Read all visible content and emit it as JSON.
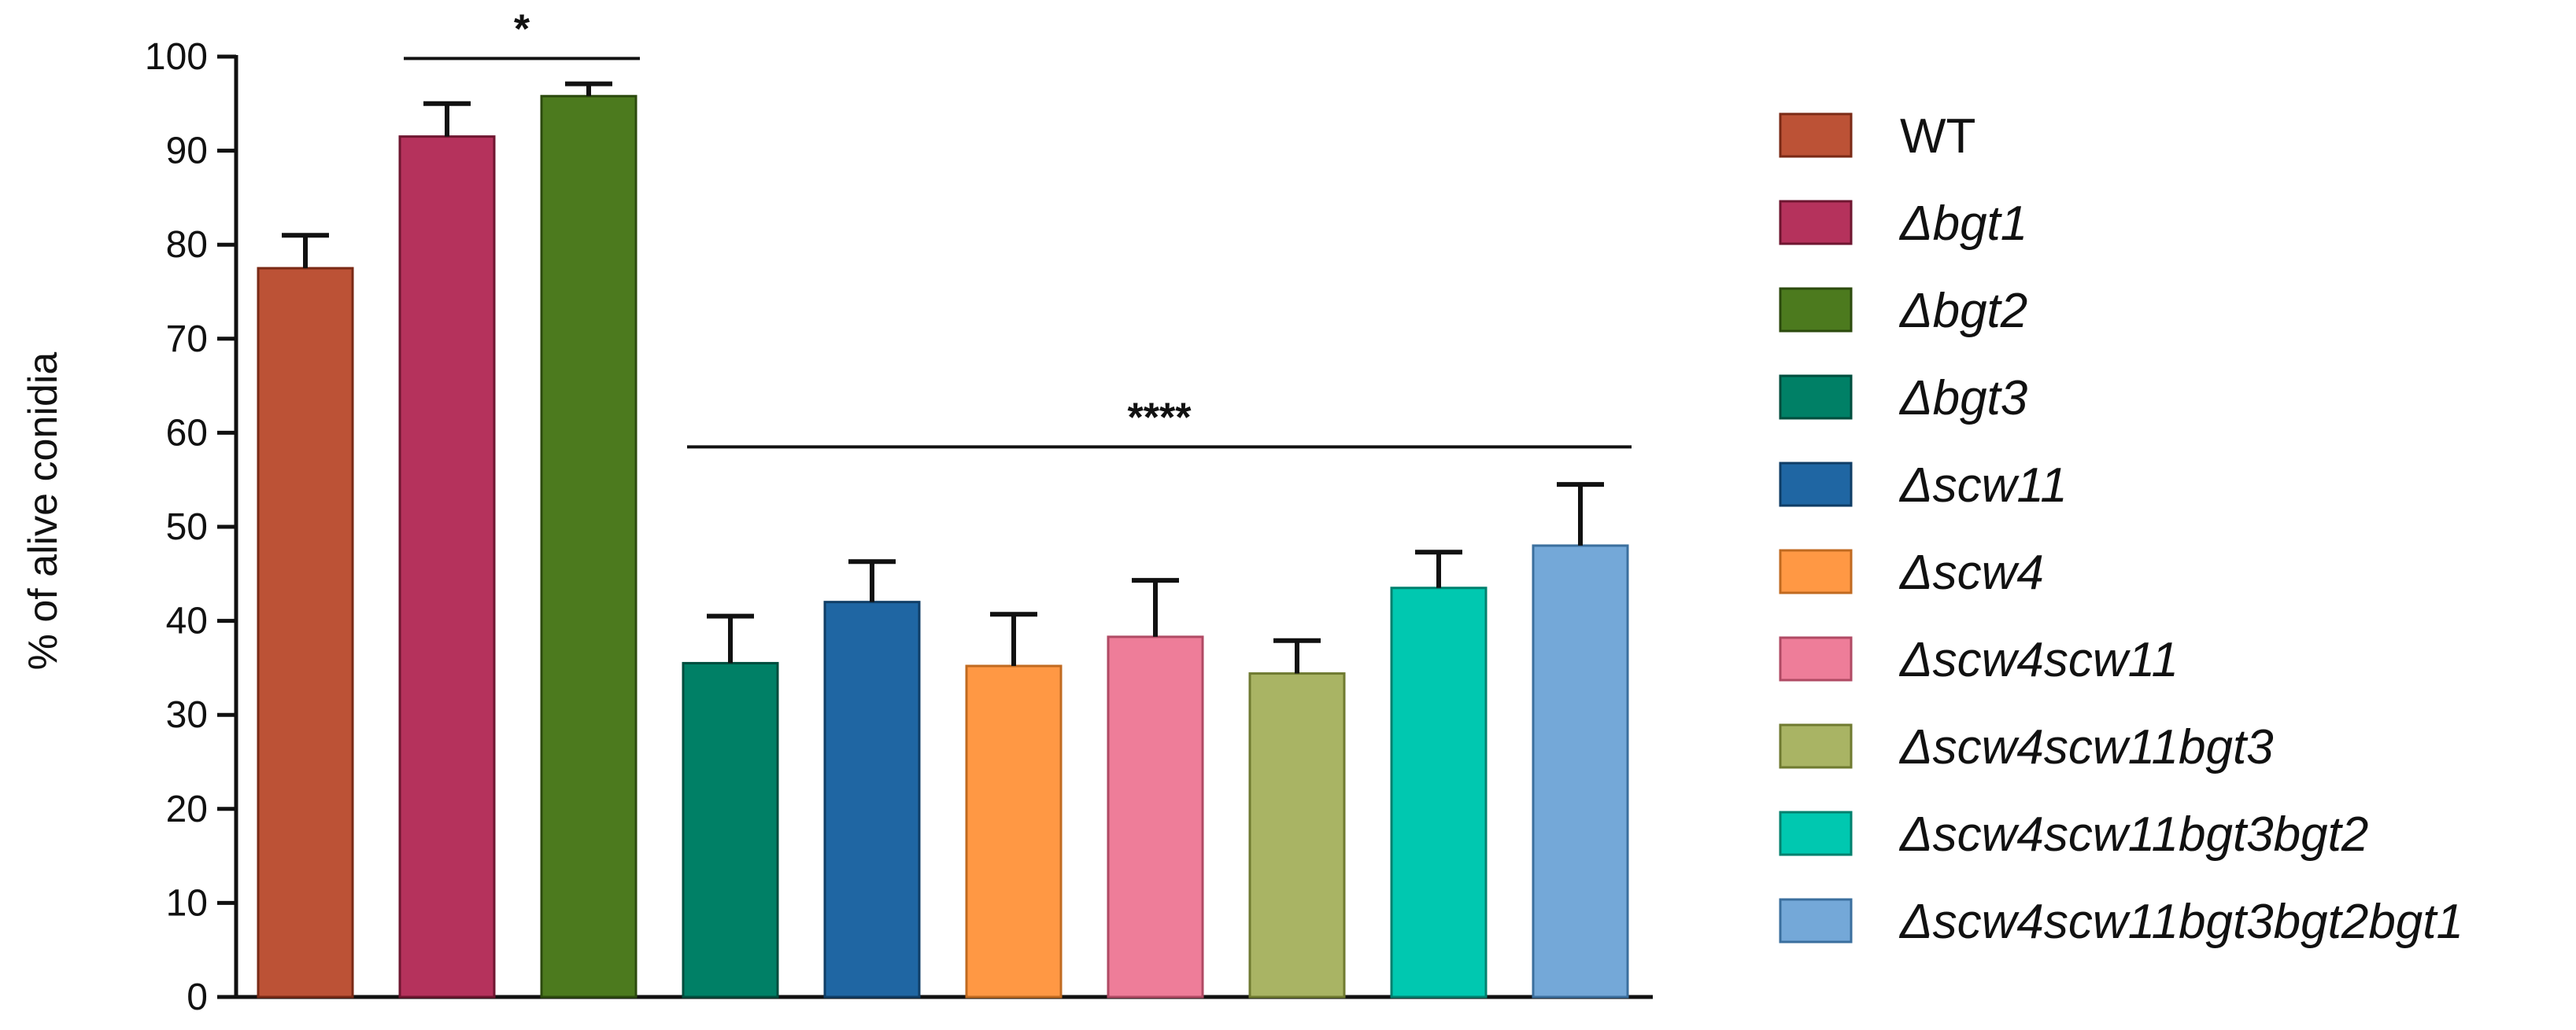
{
  "chart_data": {
    "type": "bar",
    "ylabel": "% of alive conidia",
    "xlabel": "",
    "ylim": [
      0,
      100
    ],
    "yticks": [
      0,
      10,
      20,
      30,
      40,
      50,
      60,
      70,
      80,
      90,
      100
    ],
    "grid": false,
    "legend_position": "right",
    "series": [
      {
        "name": "WT",
        "value": 77.5,
        "error": 3.5,
        "color": "#bc5236",
        "stroke": "#7a2a16",
        "italic": false
      },
      {
        "name": "Δbgt1",
        "value": 91.5,
        "error": 3.5,
        "color": "#b5325c",
        "stroke": "#6e1630",
        "italic": true
      },
      {
        "name": "Δbgt2",
        "value": 95.8,
        "error": 1.3,
        "color": "#4c7a1e",
        "stroke": "#2c4a0e",
        "italic": true
      },
      {
        "name": "Δbgt3",
        "value": 35.5,
        "error": 5.0,
        "color": "#008066",
        "stroke": "#004d3d",
        "italic": true
      },
      {
        "name": "Δscw11",
        "value": 42.0,
        "error": 4.3,
        "color": "#1f66a3",
        "stroke": "#0f3d66",
        "italic": true
      },
      {
        "name": "Δscw4",
        "value": 35.2,
        "error": 5.5,
        "color": "#ff9844",
        "stroke": "#c06a20",
        "italic": true
      },
      {
        "name": "Δscw4scw11",
        "value": 38.3,
        "error": 6.0,
        "color": "#ee7d99",
        "stroke": "#b04a64",
        "italic": true
      },
      {
        "name": "Δscw4scw11bgt3",
        "value": 34.4,
        "error": 3.5,
        "color": "#a9b464",
        "stroke": "#6f7a30",
        "italic": true
      },
      {
        "name": "Δscw4scw11bgt3bgt2",
        "value": 43.5,
        "error": 3.8,
        "color": "#00c8b0",
        "stroke": "#00806e",
        "italic": true
      },
      {
        "name": "Δscw4scw11bgt3bgt2bgt1",
        "value": 48.0,
        "error": 6.5,
        "color": "#74a8d8",
        "stroke": "#3b6f9e",
        "italic": true
      }
    ],
    "annotations": [
      {
        "label": "*",
        "from": 1,
        "to": 2,
        "y": 99.8
      },
      {
        "label": "****",
        "from": 3,
        "to": 9,
        "y": 58.5
      }
    ]
  }
}
